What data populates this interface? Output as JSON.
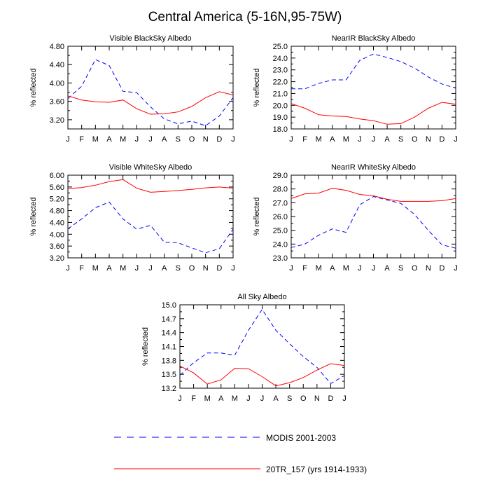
{
  "figure": {
    "title": "Central America (5-16N,95-75W)"
  },
  "legend": {
    "modis_label": "MODIS 2001-2003",
    "model_label": "20TR_157 (yrs 1914-1933)",
    "modis_color": "#0000ff",
    "model_color": "#ff0000"
  },
  "chart_data": [
    {
      "type": "line",
      "title": "Visible BlackSky Albedo",
      "ylabel": "% reflected",
      "categories": [
        "J",
        "F",
        "M",
        "A",
        "M",
        "J",
        "J",
        "A",
        "S",
        "O",
        "N",
        "D",
        "J"
      ],
      "ylim": [
        3.0,
        4.8
      ],
      "yticks": [
        "4.80",
        "4.40",
        "4.00",
        "3.60",
        "3.20"
      ],
      "series": [
        {
          "name": "MODIS 2001-2003",
          "values": [
            3.66,
            3.93,
            4.51,
            4.38,
            3.82,
            3.79,
            3.48,
            3.22,
            3.11,
            3.17,
            3.07,
            3.28,
            3.68
          ]
        },
        {
          "name": "20TR_157 (yrs 1914-1933)",
          "values": [
            3.72,
            3.63,
            3.59,
            3.58,
            3.63,
            3.44,
            3.32,
            3.33,
            3.37,
            3.49,
            3.68,
            3.81,
            3.74
          ]
        }
      ]
    },
    {
      "type": "line",
      "title": "NearIR BlackSky Albedo",
      "ylabel": "% reflected",
      "categories": [
        "J",
        "F",
        "M",
        "A",
        "M",
        "J",
        "J",
        "A",
        "S",
        "O",
        "N",
        "D",
        "J"
      ],
      "ylim": [
        18.0,
        25.0
      ],
      "yticks": [
        "25.0",
        "24.0",
        "23.0",
        "22.0",
        "21.0",
        "20.0",
        "19.0",
        "18.0"
      ],
      "series": [
        {
          "name": "MODIS 2001-2003",
          "values": [
            21.4,
            21.4,
            21.85,
            22.15,
            22.15,
            23.8,
            24.35,
            24.05,
            23.7,
            23.15,
            22.4,
            21.8,
            21.45
          ]
        },
        {
          "name": "20TR_157 (yrs 1914-1933)",
          "values": [
            20.15,
            19.75,
            19.2,
            19.1,
            19.05,
            18.85,
            18.7,
            18.4,
            18.45,
            19.0,
            19.75,
            20.25,
            20.1
          ]
        }
      ]
    },
    {
      "type": "line",
      "title": "Visible WhiteSky Albedo",
      "ylabel": "% reflected",
      "categories": [
        "J",
        "F",
        "M",
        "A",
        "M",
        "J",
        "J",
        "A",
        "S",
        "O",
        "N",
        "D",
        "J"
      ],
      "ylim": [
        3.2,
        6.0
      ],
      "yticks": [
        "6.00",
        "5.60",
        "5.20",
        "4.80",
        "4.40",
        "4.00",
        "3.60",
        "3.20"
      ],
      "series": [
        {
          "name": "MODIS 2001-2003",
          "values": [
            4.18,
            4.52,
            4.9,
            5.09,
            4.52,
            4.17,
            4.3,
            3.73,
            3.71,
            3.54,
            3.37,
            3.51,
            4.17
          ]
        },
        {
          "name": "20TR_157 (yrs 1914-1933)",
          "values": [
            5.55,
            5.58,
            5.66,
            5.78,
            5.85,
            5.56,
            5.42,
            5.45,
            5.48,
            5.52,
            5.57,
            5.6,
            5.56
          ]
        }
      ]
    },
    {
      "type": "line",
      "title": "NearIR WhiteSky Albedo",
      "ylabel": "% reflected",
      "categories": [
        "J",
        "F",
        "M",
        "A",
        "M",
        "J",
        "J",
        "A",
        "S",
        "O",
        "N",
        "D",
        "J"
      ],
      "ylim": [
        23.0,
        29.0
      ],
      "yticks": [
        "29.0",
        "28.0",
        "27.0",
        "26.0",
        "25.0",
        "24.0",
        "23.0"
      ],
      "series": [
        {
          "name": "MODIS 2001-2003",
          "values": [
            23.75,
            24.0,
            24.65,
            25.1,
            24.85,
            26.85,
            27.45,
            27.2,
            26.95,
            26.15,
            25.0,
            23.95,
            23.7
          ]
        },
        {
          "name": "20TR_157 (yrs 1914-1933)",
          "values": [
            27.3,
            27.65,
            27.7,
            28.05,
            27.9,
            27.6,
            27.5,
            27.25,
            27.1,
            27.1,
            27.1,
            27.15,
            27.3
          ]
        }
      ]
    },
    {
      "type": "line",
      "title": "All Sky Albedo",
      "ylabel": "% reflected",
      "categories": [
        "J",
        "F",
        "M",
        "A",
        "M",
        "J",
        "J",
        "A",
        "S",
        "O",
        "N",
        "D",
        "J"
      ],
      "ylim": [
        13.2,
        15.0
      ],
      "yticks": [
        "15.0",
        "14.7",
        "14.4",
        "14.1",
        "13.8",
        "13.5",
        "13.2"
      ],
      "series": [
        {
          "name": "MODIS 2001-2003",
          "values": [
            13.48,
            13.75,
            13.96,
            13.96,
            13.91,
            14.45,
            14.9,
            14.45,
            14.16,
            13.88,
            13.65,
            13.3,
            13.47
          ]
        },
        {
          "name": "20TR_157 (yrs 1914-1933)",
          "values": [
            13.68,
            13.53,
            13.29,
            13.38,
            13.63,
            13.62,
            13.45,
            13.25,
            13.32,
            13.43,
            13.59,
            13.73,
            13.69
          ]
        }
      ]
    }
  ]
}
